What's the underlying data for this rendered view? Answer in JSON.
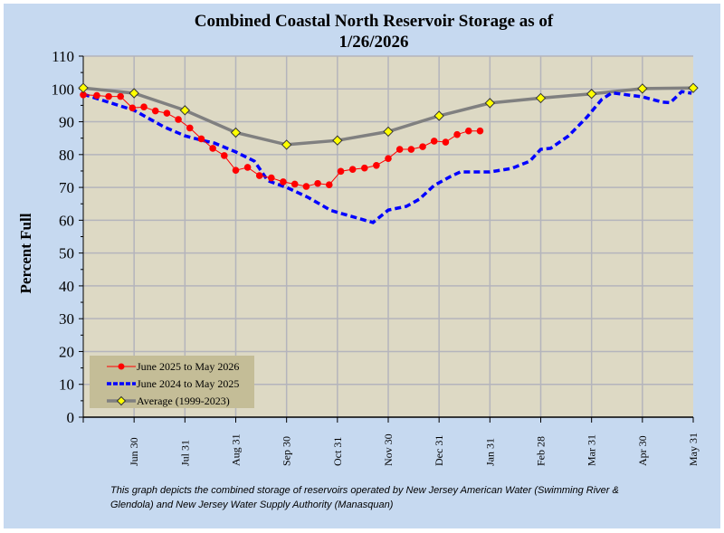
{
  "chart_data": {
    "type": "line",
    "title": "Combined Coastal North Reservoir Storage as of",
    "subtitle": "1/26/2026",
    "xlabel": "",
    "ylabel": "Percent Full",
    "ylim": [
      0,
      110
    ],
    "yticks": [
      0,
      10,
      20,
      30,
      40,
      50,
      60,
      70,
      80,
      90,
      100,
      110
    ],
    "xtick_labels": [
      "Jun 30",
      "Jul 31",
      "Aug 31",
      "Sep 30",
      "Oct 31",
      "Nov 30",
      "Dec 31",
      "Jan 31",
      "Feb 28",
      "Mar 31",
      "Apr 30",
      "May 31"
    ],
    "grid": true,
    "legend_placement": "bottom-left",
    "series": [
      {
        "name": "June 2025 to May 2026",
        "color": "#ff0000",
        "marker": "circle",
        "line": "solid-thin",
        "points": [
          [
            "2025-06-01",
            98.2
          ],
          [
            "2025-06-08",
            98.0
          ],
          [
            "2025-06-15",
            97.7
          ],
          [
            "2025-06-22",
            97.7
          ],
          [
            "2025-06-29",
            94.2
          ],
          [
            "2025-07-06",
            94.5
          ],
          [
            "2025-07-13",
            93.3
          ],
          [
            "2025-07-20",
            92.6
          ],
          [
            "2025-07-27",
            90.7
          ],
          [
            "2025-08-03",
            88.1
          ],
          [
            "2025-08-10",
            84.8
          ],
          [
            "2025-08-17",
            81.9
          ],
          [
            "2025-08-24",
            79.7
          ],
          [
            "2025-08-31",
            75.2
          ],
          [
            "2025-09-07",
            76.1
          ],
          [
            "2025-09-14",
            73.6
          ],
          [
            "2025-09-21",
            72.9
          ],
          [
            "2025-09-28",
            71.7
          ],
          [
            "2025-10-05",
            71.0
          ],
          [
            "2025-10-12",
            70.3
          ],
          [
            "2025-10-19",
            71.2
          ],
          [
            "2025-10-26",
            70.8
          ],
          [
            "2025-11-02",
            74.9
          ],
          [
            "2025-11-09",
            75.5
          ],
          [
            "2025-11-16",
            75.9
          ],
          [
            "2025-11-23",
            76.7
          ],
          [
            "2025-11-30",
            78.8
          ],
          [
            "2025-12-07",
            81.6
          ],
          [
            "2025-12-14",
            81.6
          ],
          [
            "2025-12-21",
            82.4
          ],
          [
            "2025-12-28",
            84.1
          ],
          [
            "2026-01-04",
            83.8
          ],
          [
            "2026-01-11",
            86.1
          ],
          [
            "2026-01-18",
            87.2
          ],
          [
            "2026-01-25",
            87.2
          ]
        ]
      },
      {
        "name": "June 2024 to May 2025",
        "color": "#0000ff",
        "marker": "none",
        "line": "dashed-thick",
        "points": [
          [
            "2024-06-01",
            98.4
          ],
          [
            "2024-06-30",
            93.5
          ],
          [
            "2024-07-18",
            88.5
          ],
          [
            "2024-07-31",
            85.7
          ],
          [
            "2024-08-10",
            84.4
          ],
          [
            "2024-08-18",
            83.5
          ],
          [
            "2024-08-31",
            80.8
          ],
          [
            "2024-09-11",
            78.0
          ],
          [
            "2024-09-19",
            72.0
          ],
          [
            "2024-09-30",
            70.0
          ],
          [
            "2024-10-13",
            67.0
          ],
          [
            "2024-10-27",
            63.0
          ],
          [
            "2024-11-06",
            61.5
          ],
          [
            "2024-11-21",
            59.3
          ],
          [
            "2024-11-30",
            63.1
          ],
          [
            "2024-12-11",
            64.2
          ],
          [
            "2024-12-19",
            66.4
          ],
          [
            "2024-12-28",
            70.6
          ],
          [
            "2025-01-07",
            73.3
          ],
          [
            "2025-01-13",
            74.7
          ],
          [
            "2025-01-24",
            74.7
          ],
          [
            "2025-01-31",
            74.7
          ],
          [
            "2025-02-12",
            75.8
          ],
          [
            "2025-02-22",
            78.0
          ],
          [
            "2025-02-28",
            81.6
          ],
          [
            "2025-03-06",
            81.9
          ],
          [
            "2025-03-17",
            85.7
          ],
          [
            "2025-03-28",
            91.3
          ],
          [
            "2025-04-06",
            96.8
          ],
          [
            "2025-04-12",
            98.8
          ],
          [
            "2025-04-30",
            97.6
          ],
          [
            "2025-05-12",
            96.0
          ],
          [
            "2025-05-17",
            95.8
          ],
          [
            "2025-05-24",
            99.2
          ],
          [
            "2025-05-30",
            98.7
          ]
        ]
      },
      {
        "name": "Average (1999-2023)",
        "color": "#808080",
        "marker": "diamond",
        "marker_color": "#ffff00",
        "line": "solid-thick",
        "points": [
          [
            "06-01",
            100.3
          ],
          [
            "06-30",
            98.7
          ],
          [
            "07-31",
            93.5
          ],
          [
            "08-31",
            86.7
          ],
          [
            "09-30",
            83.0
          ],
          [
            "10-31",
            84.3
          ],
          [
            "11-30",
            87.0
          ],
          [
            "12-31",
            91.8
          ],
          [
            "01-31",
            95.7
          ],
          [
            "02-28",
            97.2
          ],
          [
            "03-31",
            98.5
          ],
          [
            "04-30",
            100.1
          ],
          [
            "05-31",
            100.3
          ]
        ]
      }
    ],
    "footnote_lines": [
      "This graph depicts the combined storage of reservoirs operated by New Jersey American Water (Swimming River &",
      "Glendola) and New Jersey Water Supply Authority (Manasquan)"
    ]
  },
  "colors": {
    "background": "#c6d9f0",
    "plot_background": "#ddd9c4",
    "legend_background": "#c4bd97",
    "grid": "#b4b4bc"
  }
}
